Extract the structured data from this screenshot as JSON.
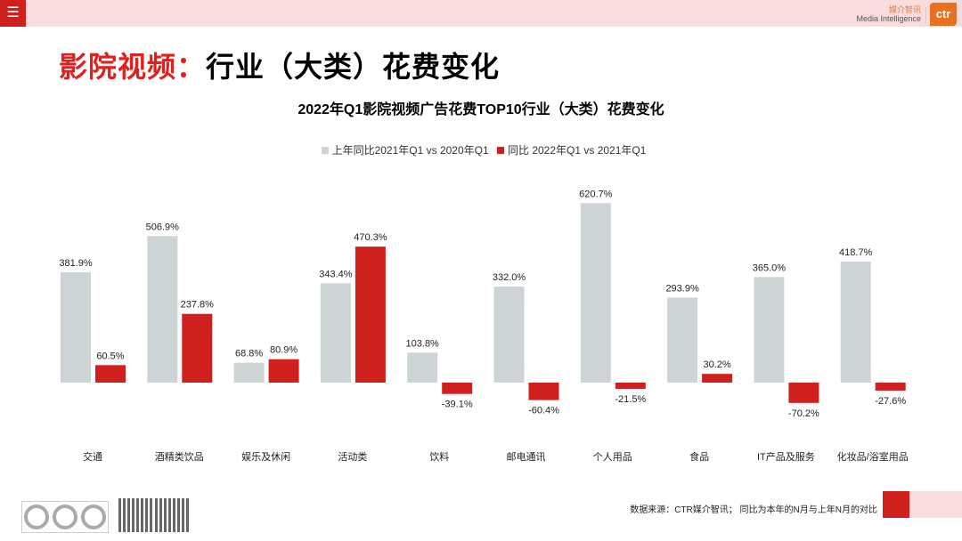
{
  "header": {
    "menu_icon": "menu-icon",
    "brand_cn": "媒介智讯",
    "brand_en": "Media Intelligence",
    "logo": "ctr"
  },
  "page_title_red": "影院视频：",
  "page_title_black": "行业（大类）花费变化",
  "footer": {
    "source": "数据来源：CTR媒介智讯； 同比为本年的N月与上年N月的对比"
  },
  "colors": {
    "prev": "#cdd4d6",
    "curr": "#d0201d"
  },
  "chart_data": {
    "type": "bar",
    "title": "2022年Q1影院视频广告花费TOP10行业（大类）花费变化",
    "legend_position": "top",
    "categories": [
      "交通",
      "酒精类饮品",
      "娱乐及休闲",
      "活动类",
      "饮料",
      "邮电通讯",
      "个人用品",
      "食品",
      "IT产品及服务",
      "化妆品/浴室用品"
    ],
    "series": [
      {
        "name": "上年同比2021年Q1 vs 2020年Q1",
        "values": [
          381.9,
          506.9,
          68.8,
          343.4,
          103.8,
          332.0,
          620.7,
          293.9,
          365.0,
          418.7
        ]
      },
      {
        "name": "同比 2022年Q1 vs 2021年Q1",
        "values": [
          60.5,
          237.8,
          80.9,
          470.3,
          -39.1,
          -60.4,
          -21.5,
          30.2,
          -70.2,
          -27.6
        ]
      }
    ],
    "unit": "%",
    "grid": false
  }
}
